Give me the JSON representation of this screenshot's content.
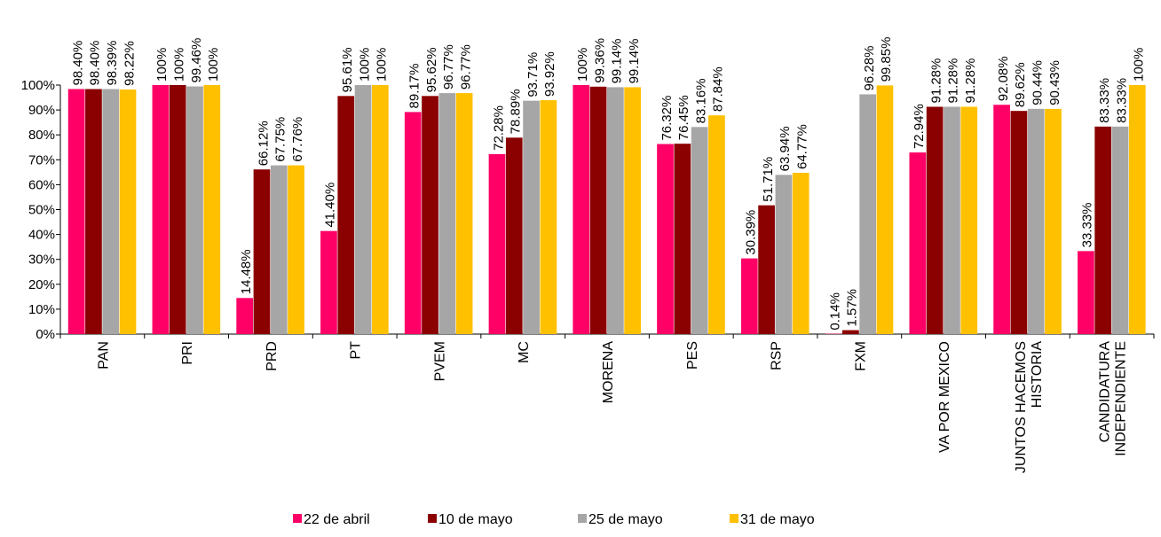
{
  "chart_data": {
    "type": "bar",
    "title": "",
    "xlabel": "",
    "ylabel": "",
    "ylim": [
      0,
      100
    ],
    "yticks": [
      "0%",
      "10%",
      "20%",
      "30%",
      "40%",
      "50%",
      "60%",
      "70%",
      "80%",
      "90%",
      "100%"
    ],
    "grid": false,
    "legend_position": "bottom",
    "categories": [
      [
        "PAN"
      ],
      [
        "PRI"
      ],
      [
        "PRD"
      ],
      [
        "PT"
      ],
      [
        "PVEM"
      ],
      [
        "MC"
      ],
      [
        "MORENA"
      ],
      [
        "PES"
      ],
      [
        "RSP"
      ],
      [
        "FXM"
      ],
      [
        "VA POR MEXICO"
      ],
      [
        "JUNTOS HACEMOS",
        "HISTORIA"
      ],
      [
        "CANDIDATURA",
        "INDEPENDIENTE"
      ]
    ],
    "series": [
      {
        "name": "22 de abril",
        "color": "#ff0066",
        "values": [
          98.4,
          100,
          14.48,
          41.4,
          89.17,
          72.28,
          100,
          76.32,
          30.39,
          0.14,
          72.94,
          92.08,
          33.33
        ],
        "labels": [
          "98.40%",
          "100%",
          "14.48%",
          "41.40%",
          "89.17%",
          "72.28%",
          "100%",
          "76.32%",
          "30.39%",
          "0.14%",
          "72.94%",
          "92.08%",
          "33.33%"
        ]
      },
      {
        "name": "10 de mayo",
        "color": "#8b0000",
        "values": [
          98.4,
          100,
          66.12,
          95.61,
          95.62,
          78.89,
          99.36,
          76.45,
          51.71,
          1.57,
          91.28,
          89.62,
          83.33
        ],
        "labels": [
          "98.40%",
          "100%",
          "66.12%",
          "95.61%",
          "95.62%",
          "78.89%",
          "99.36%",
          "76.45%",
          "51.71%",
          "1.57%",
          "91.28%",
          "89.62%",
          "83.33%"
        ]
      },
      {
        "name": "25 de mayo",
        "color": "#a6a6a6",
        "values": [
          98.39,
          99.46,
          67.75,
          100,
          96.77,
          93.71,
          99.14,
          83.16,
          63.94,
          96.28,
          91.28,
          90.44,
          83.33
        ],
        "labels": [
          "98.39%",
          "99.46%",
          "67.75%",
          "100%",
          "96.77%",
          "93.71%",
          "99.14%",
          "83.16%",
          "63.94%",
          "96.28%",
          "91.28%",
          "90.44%",
          "83.33%"
        ]
      },
      {
        "name": "31 de mayo",
        "color": "#ffc000",
        "values": [
          98.22,
          100,
          67.76,
          100,
          96.77,
          93.92,
          99.14,
          87.84,
          64.77,
          99.85,
          91.28,
          90.43,
          100
        ],
        "labels": [
          "98.22%",
          "100%",
          "67.76%",
          "100%",
          "96.77%",
          "93.92%",
          "99.14%",
          "87.84%",
          "64.77%",
          "99.85%",
          "91.28%",
          "90.43%",
          "100%"
        ]
      }
    ]
  }
}
